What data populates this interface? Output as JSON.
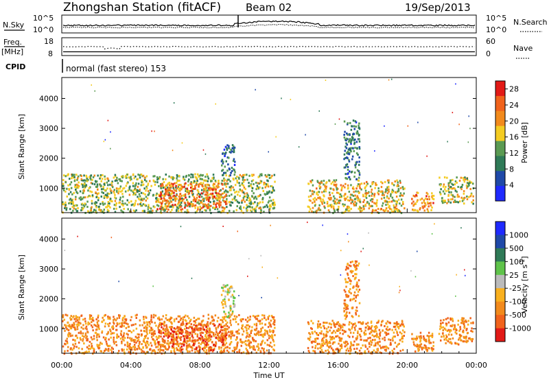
{
  "header": {
    "station": "Zhongshan Station (fitACF)",
    "beam": "Beam 02",
    "date": "19/Sep/2013"
  },
  "top_panels": {
    "nsky_label": "N.Sky",
    "nsky_ticks": [
      "10^5",
      "10^0"
    ],
    "nsearch_label": "N.Search",
    "freq_label": "Freq.",
    "freq_unit": "[MHz]",
    "freq_ticks": [
      "18",
      "8"
    ],
    "nave_label": "Nave",
    "nave_ticks": [
      "60",
      "0"
    ],
    "cpid_label": "CPID",
    "cpid_text": "normal (fast stereo) 153"
  },
  "colors": {
    "power_scale": [
      "#1f2aff",
      "#1f49a8",
      "#2f7a57",
      "#5a9a52",
      "#f4cc22",
      "#f28a1c",
      "#f1631c",
      "#e21a17"
    ],
    "velocity_scale": [
      "#e21a17",
      "#f1631c",
      "#f28a1c",
      "#f9b01e",
      "#bbbbbb",
      "#5fc34a",
      "#2f7a57",
      "#1f49a8",
      "#1f2aff"
    ]
  },
  "chart_data": [
    {
      "type": "heatmap",
      "title": "Power",
      "xlabel": "Time UT",
      "ylabel": "Slant Range [km]",
      "x_ticks": [
        "00:00",
        "04:00",
        "08:00",
        "12:00",
        "16:00",
        "20:00",
        "00:00"
      ],
      "x_range_hours": [
        0,
        24
      ],
      "y_ticks": [
        1000,
        2000,
        3000,
        4000
      ],
      "ylim": [
        180,
        4700
      ],
      "colorbar": {
        "label": "Power [dB]",
        "ticks": [
          4,
          8,
          12,
          16,
          20,
          24,
          28
        ],
        "range": [
          0,
          30
        ]
      },
      "echo_regions": [
        {
          "t_start": 0.0,
          "t_end": 12.3,
          "r_low": 200,
          "r_high": 1500,
          "dominant_db": 14
        },
        {
          "t_start": 5.5,
          "t_end": 9.5,
          "r_low": 300,
          "r_high": 1200,
          "dominant_db": 24
        },
        {
          "t_start": 9.2,
          "t_end": 10.0,
          "r_low": 1400,
          "r_high": 2500,
          "dominant_db": 8
        },
        {
          "t_start": 14.2,
          "t_end": 19.8,
          "r_low": 200,
          "r_high": 1300,
          "dominant_db": 18
        },
        {
          "t_start": 16.3,
          "t_end": 17.2,
          "r_low": 1300,
          "r_high": 3300,
          "dominant_db": 8
        },
        {
          "t_start": 20.2,
          "t_end": 21.5,
          "r_low": 250,
          "r_high": 900,
          "dominant_db": 22
        },
        {
          "t_start": 21.8,
          "t_end": 23.8,
          "r_low": 500,
          "r_high": 1400,
          "dominant_db": 16
        }
      ]
    },
    {
      "type": "heatmap",
      "title": "Velocity",
      "xlabel": "Time UT",
      "ylabel": "Slant Range [km]",
      "x_ticks": [
        "00:00",
        "04:00",
        "08:00",
        "12:00",
        "16:00",
        "20:00",
        "00:00"
      ],
      "x_range_hours": [
        0,
        24
      ],
      "y_ticks": [
        1000,
        2000,
        3000,
        4000
      ],
      "ylim": [
        180,
        4700
      ],
      "colorbar": {
        "label": "Velocity [m s^-1]",
        "ticks": [
          "1000",
          "500",
          "100",
          "25",
          "-25",
          "-100",
          "-500",
          "-1000"
        ]
      },
      "echo_regions": [
        {
          "t_start": 0.0,
          "t_end": 12.3,
          "r_low": 200,
          "r_high": 1500,
          "dominant_ms": -300
        },
        {
          "t_start": 5.5,
          "t_end": 9.5,
          "r_low": 300,
          "r_high": 1200,
          "dominant_ms": -500
        },
        {
          "t_start": 9.2,
          "t_end": 10.0,
          "r_low": 1400,
          "r_high": 2500,
          "dominant_ms": 25
        },
        {
          "t_start": 14.2,
          "t_end": 19.8,
          "r_low": 200,
          "r_high": 1300,
          "dominant_ms": -400
        },
        {
          "t_start": 16.3,
          "t_end": 17.2,
          "r_low": 1300,
          "r_high": 3300,
          "dominant_ms": -100
        },
        {
          "t_start": 20.2,
          "t_end": 21.5,
          "r_low": 250,
          "r_high": 900,
          "dominant_ms": -200
        },
        {
          "t_start": 21.8,
          "t_end": 23.8,
          "r_low": 500,
          "r_high": 1400,
          "dominant_ms": -150
        }
      ]
    }
  ]
}
